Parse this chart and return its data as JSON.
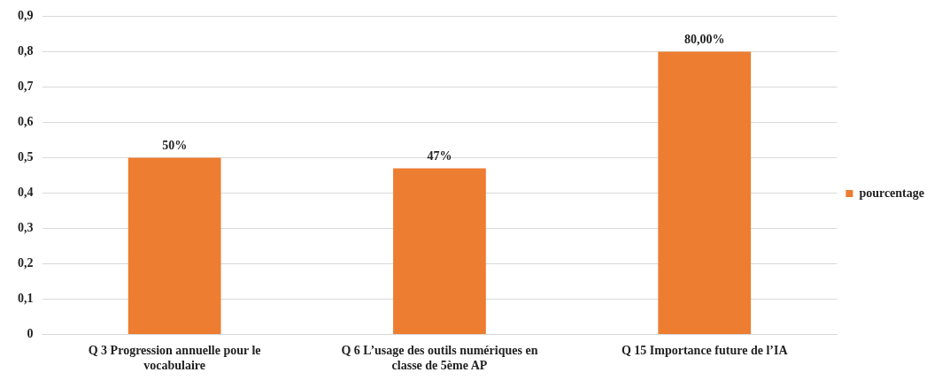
{
  "chart_data": {
    "type": "bar",
    "categories": [
      "Q 3 Progression annuelle pour le vocabulaire",
      "Q 6 L’usage des outils numériques en classe de 5ème AP",
      "Q 15 Importance future de l’IA"
    ],
    "series": [
      {
        "name": "pourcentage",
        "color": "#ed7d31",
        "values": [
          0.5,
          0.47,
          0.8
        ],
        "value_labels": [
          "50%",
          "47%",
          "80,00%"
        ]
      }
    ],
    "ylim": [
      0,
      0.9
    ],
    "yticks": [
      0,
      {
        "value": 0.1,
        "label": "0,1"
      },
      {
        "value": 0.2,
        "label": "0,2"
      },
      {
        "value": 0.3,
        "label": "0,3"
      },
      {
        "value": 0.4,
        "label": "0,4"
      },
      {
        "value": 0.5,
        "label": "0,5"
      },
      {
        "value": 0.6,
        "label": "0,6"
      },
      {
        "value": 0.7,
        "label": "0,7"
      },
      {
        "value": 0.8,
        "label": "0,8"
      },
      {
        "value": 0.9,
        "label": "0,9"
      }
    ],
    "grid": "y",
    "legend": "right"
  }
}
